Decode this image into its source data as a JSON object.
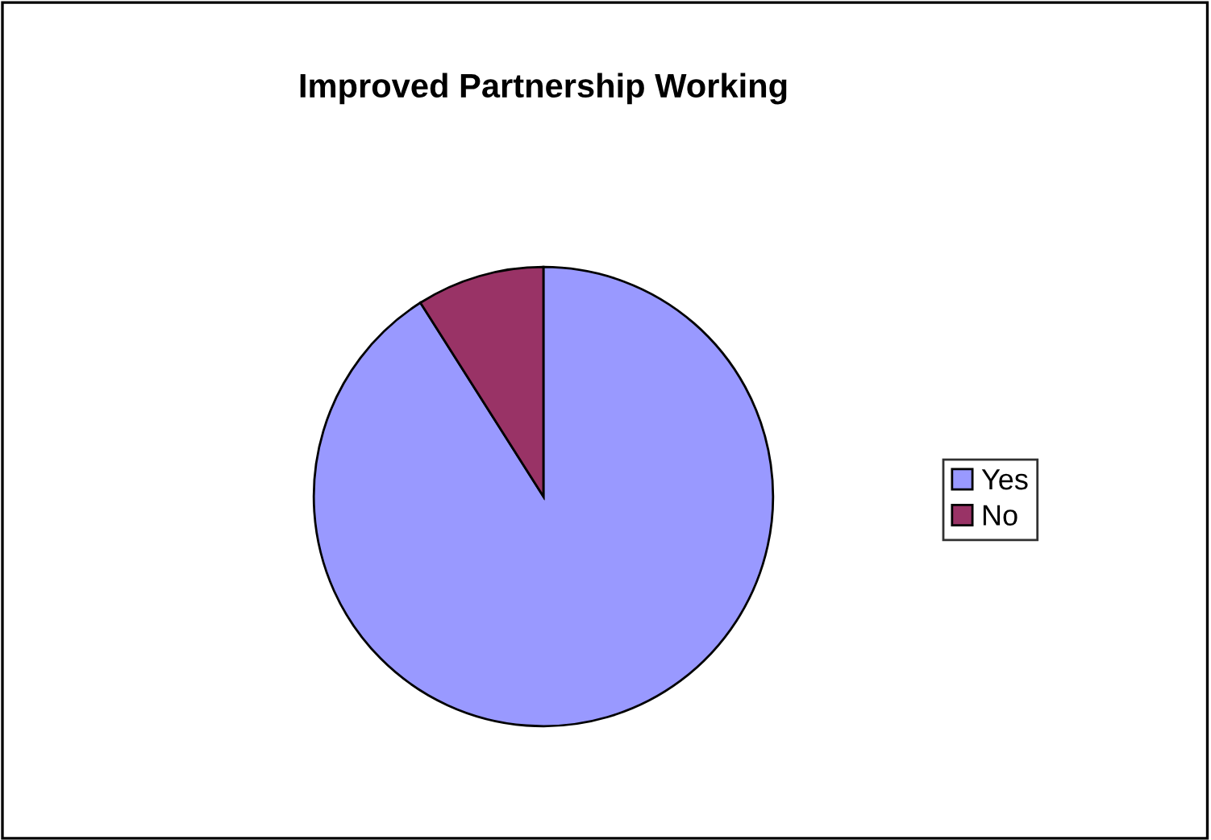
{
  "chart_data": {
    "type": "pie",
    "title": "Improved Partnership Working",
    "categories": [
      "Yes",
      "No"
    ],
    "values": [
      91,
      9
    ],
    "colors": [
      "#9999ff",
      "#993366"
    ],
    "legend": "right"
  }
}
